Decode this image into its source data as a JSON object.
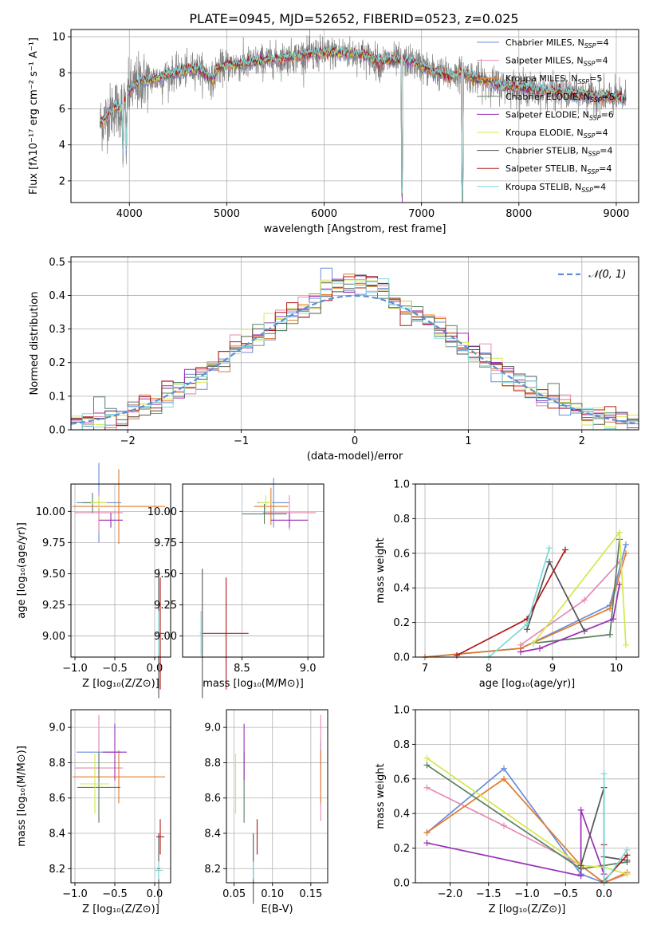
{
  "figure": {
    "title": "PLATE=0945, MJD=52652, FIBERID=0523, z=0.025"
  },
  "colors": {
    "Chabrier MILES": "#6a8cd8",
    "Salpeter MILES": "#e58ab6",
    "Kroupa MILES": "#e07b2a",
    "Chabrier ELODIE": "#5a8060",
    "Salpeter ELODIE": "#9a2fb5",
    "Kroupa ELODIE": "#d4e84a",
    "Chabrier STELIB": "#555555",
    "Salpeter STELIB": "#b01818",
    "Kroupa STELIB": "#7dd9d9",
    "data": "#808080",
    "gaussian": "#5b8fd6"
  },
  "chart_data": [
    {
      "id": "spectrum",
      "type": "line",
      "title": "PLATE=0945, MJD=52652, FIBERID=0523, z=0.025",
      "xlabel": "wavelength [Angstrom, rest frame]",
      "ylabel": "Flux [fλ10⁻¹⁷ erg cm⁻² s⁻¹ A⁻¹]",
      "xlim": [
        3400,
        9230
      ],
      "ylim": [
        0.8,
        10.4
      ],
      "xticks": [
        4000,
        5000,
        6000,
        7000,
        8000,
        9000
      ],
      "yticks": [
        2,
        4,
        6,
        8,
        10
      ],
      "legend_position": "top-right",
      "continuum_anchors": {
        "x": [
          3700,
          3760,
          3800,
          3850,
          3900,
          3950,
          4000,
          4050,
          4100,
          4200,
          4300,
          4400,
          4500,
          4700,
          4860,
          4900,
          5000,
          5200,
          5400,
          5600,
          5800,
          6000,
          6200,
          6400,
          6563,
          6700,
          6900,
          7000,
          7100,
          7300,
          7400,
          7500,
          7600,
          7700,
          7800,
          8000,
          8200,
          8400,
          8600,
          8800,
          9000,
          9100
        ],
        "y": [
          5.2,
          5.5,
          5.8,
          6.1,
          6.0,
          6.3,
          7.0,
          7.2,
          7.5,
          7.6,
          7.7,
          7.9,
          8.0,
          8.3,
          7.6,
          8.2,
          8.4,
          8.5,
          8.7,
          8.8,
          9.0,
          9.1,
          9.1,
          9.0,
          8.6,
          8.7,
          8.6,
          8.4,
          8.1,
          7.8,
          8.0,
          7.8,
          7.6,
          7.5,
          7.3,
          7.2,
          7.0,
          6.9,
          6.8,
          6.7,
          6.6,
          6.6
        ]
      },
      "series": [
        {
          "name": "Chabrier MILES, N_SSP=4",
          "label": "Chabrier MILES, N",
          "nssp": "=4"
        },
        {
          "name": "Salpeter MILES, N_SSP=4",
          "label": "Salpeter MILES, N",
          "nssp": "=4"
        },
        {
          "name": "Kroupa MILES, N_SSP=5",
          "label": "Kroupa MILES, N",
          "nssp": "=5"
        },
        {
          "name": "Chabrier ELODIE, N_SSP=5",
          "label": "Chabrier ELODIE, N",
          "nssp": "=5"
        },
        {
          "name": "Salpeter ELODIE, N_SSP=6",
          "label": "Salpeter ELODIE, N",
          "nssp": "=6"
        },
        {
          "name": "Kroupa ELODIE, N_SSP=4",
          "label": "Kroupa ELODIE, N",
          "nssp": "=4"
        },
        {
          "name": "Chabrier STELIB, N_SSP=4",
          "label": "Chabrier STELIB, N",
          "nssp": "=4"
        },
        {
          "name": "Salpeter STELIB, N_SSP=4",
          "label": "Salpeter STELIB, N",
          "nssp": "=4"
        },
        {
          "name": "Kroupa STELIB, N_SSP=4",
          "label": "Kroupa STELIB, N",
          "nssp": "=4"
        }
      ],
      "legend_sub": "SSP"
    },
    {
      "id": "residuals",
      "type": "histogram",
      "xlabel": "(data-model)/error",
      "ylabel": "Normed distribution",
      "xlim": [
        -2.5,
        2.5
      ],
      "ylim": [
        0,
        0.515
      ],
      "xticks": [
        -2,
        -1,
        0,
        1,
        2
      ],
      "yticks": [
        0.0,
        0.1,
        0.2,
        0.3,
        0.4,
        0.5
      ],
      "bin_width": 0.1,
      "grid": true,
      "legend": "𝒩(0, 1)",
      "legend_position": "top-right",
      "gaussian": {
        "mean": 0,
        "sigma": 1
      }
    },
    {
      "id": "z-age",
      "type": "scatter",
      "xlabel": "Z [log₁₀(Z/Z⊙)]",
      "ylabel": "age  [log₁₀(age/yr)]",
      "xlim": [
        -1.05,
        0.2
      ],
      "ylim": [
        8.83,
        10.22
      ],
      "xticks": [
        -1.0,
        -0.5,
        0.0
      ],
      "yticks": [
        9.0,
        9.25,
        9.5,
        9.75,
        10.0
      ],
      "points": [
        {
          "series": "Chabrier MILES",
          "x": -0.7,
          "y": 10.07,
          "xerr": 0.28,
          "yerr": 0.32
        },
        {
          "series": "Salpeter MILES",
          "x": -0.7,
          "y": 9.99,
          "xerr": 0.3,
          "yerr": 0.16
        },
        {
          "series": "Kroupa MILES",
          "x": -0.45,
          "y": 10.04,
          "xerr": 0.58,
          "yerr": 0.3
        },
        {
          "series": "Chabrier ELODIE",
          "x": -0.78,
          "y": 10.07,
          "xerr": 0.13,
          "yerr": 0.08
        },
        {
          "series": "Salpeter ELODIE",
          "x": -0.55,
          "y": 9.93,
          "xerr": 0.15,
          "yerr": 0.06
        },
        {
          "series": "Kroupa ELODIE",
          "x": -0.7,
          "y": 10.07,
          "xerr": 0.1,
          "yerr": 0.05
        },
        {
          "series": "Chabrier STELIB",
          "x": 0.05,
          "y": 9.02,
          "xerr": 0.02,
          "yerr": 0.52
        },
        {
          "series": "Salpeter STELIB",
          "x": 0.07,
          "y": 9.02,
          "xerr": 0.05,
          "yerr": 0.45
        },
        {
          "series": "Kroupa STELIB",
          "x": 0.05,
          "y": 9.02,
          "xerr": 0.02,
          "yerr": 0.18
        }
      ]
    },
    {
      "id": "mass-age",
      "type": "scatter",
      "xlabel": "mass [log₁₀(M/M⊙)]",
      "ylabel": "",
      "xlim": [
        8.05,
        9.12
      ],
      "ylim": [
        8.83,
        10.22
      ],
      "xticks": [
        8.5,
        9.0
      ],
      "yticks": [
        9.0,
        9.25,
        9.5,
        9.75,
        10.0
      ],
      "points": [
        {
          "series": "Chabrier MILES",
          "x": 8.74,
          "y": 10.07,
          "xerr": 0.12,
          "yerr": 0.2
        },
        {
          "series": "Salpeter MILES",
          "x": 8.86,
          "y": 9.99,
          "xerr": 0.2,
          "yerr": 0.14
        },
        {
          "series": "Kroupa MILES",
          "x": 8.72,
          "y": 10.04,
          "xerr": 0.13,
          "yerr": 0.15
        },
        {
          "series": "Chabrier ELODIE",
          "x": 8.67,
          "y": 9.98,
          "xerr": 0.17,
          "yerr": 0.08
        },
        {
          "series": "Salpeter ELODIE",
          "x": 8.86,
          "y": 9.93,
          "xerr": 0.14,
          "yerr": 0.06
        },
        {
          "series": "Kroupa ELODIE",
          "x": 8.68,
          "y": 10.07,
          "xerr": 0.05,
          "yerr": 0.06
        },
        {
          "series": "Chabrier STELIB",
          "x": 8.2,
          "y": 9.02,
          "xerr": 0.01,
          "yerr": 0.52
        },
        {
          "series": "Salpeter STELIB",
          "x": 8.38,
          "y": 9.02,
          "xerr": 0.17,
          "yerr": 0.45
        },
        {
          "series": "Kroupa STELIB",
          "x": 8.19,
          "y": 9.02,
          "xerr": 0.01,
          "yerr": 0.18
        }
      ]
    },
    {
      "id": "age-weight",
      "type": "line",
      "xlabel": "age  [log₁₀(age/yr)]",
      "ylabel": "mass weight",
      "xlim": [
        6.85,
        10.35
      ],
      "ylim": [
        0,
        1.0
      ],
      "xticks": [
        7,
        8,
        9,
        10
      ],
      "yticks": [
        0.0,
        0.2,
        0.4,
        0.6,
        0.8,
        1.0
      ],
      "grid": true,
      "series": [
        {
          "name": "Chabrier MILES",
          "x": [
            7.0,
            8.5,
            9.9,
            10.15
          ],
          "y": [
            0.0,
            0.05,
            0.3,
            0.65
          ]
        },
        {
          "name": "Salpeter MILES",
          "x": [
            8.5,
            9.5,
            10.05
          ],
          "y": [
            0.07,
            0.33,
            0.55
          ]
        },
        {
          "name": "Kroupa MILES",
          "x": [
            7.0,
            8.5,
            9.9,
            10.15
          ],
          "y": [
            0.0,
            0.05,
            0.28,
            0.6
          ]
        },
        {
          "name": "Chabrier ELODIE",
          "x": [
            8.7,
            9.9,
            10.05
          ],
          "y": [
            0.08,
            0.13,
            0.68
          ]
        },
        {
          "name": "Salpeter ELODIE",
          "x": [
            8.5,
            8.8,
            9.95,
            10.05
          ],
          "y": [
            0.03,
            0.05,
            0.22,
            0.42
          ]
        },
        {
          "name": "Kroupa ELODIE",
          "x": [
            8.7,
            10.05,
            10.15
          ],
          "y": [
            0.08,
            0.72,
            0.07
          ]
        },
        {
          "name": "Chabrier STELIB",
          "x": [
            8.6,
            8.95,
            9.5
          ],
          "y": [
            0.16,
            0.55,
            0.15
          ]
        },
        {
          "name": "Salpeter STELIB",
          "x": [
            7.5,
            8.6,
            9.2
          ],
          "y": [
            0.01,
            0.22,
            0.62
          ]
        },
        {
          "name": "Kroupa STELIB",
          "x": [
            8.0,
            8.6,
            8.95
          ],
          "y": [
            0.0,
            0.19,
            0.63
          ]
        }
      ]
    },
    {
      "id": "z-mass",
      "type": "scatter",
      "xlabel": "Z [log₁₀(Z/Z⊙)]",
      "ylabel": "mass [log₁₀(M/M⊙)]",
      "xlim": [
        -1.05,
        0.2
      ],
      "ylim": [
        8.12,
        9.1
      ],
      "xticks": [
        -1.0,
        -0.5,
        0.0
      ],
      "yticks": [
        8.2,
        8.4,
        8.6,
        8.8,
        9.0
      ],
      "points": [
        {
          "series": "Chabrier MILES",
          "x": -0.7,
          "y": 8.86,
          "xerr": 0.28,
          "yerr": 0.12
        },
        {
          "series": "Salpeter MILES",
          "x": -0.7,
          "y": 8.77,
          "xerr": 0.3,
          "yerr": 0.3
        },
        {
          "series": "Kroupa MILES",
          "x": -0.45,
          "y": 8.72,
          "xerr": 0.58,
          "yerr": 0.15
        },
        {
          "series": "Chabrier ELODIE",
          "x": -0.7,
          "y": 8.66,
          "xerr": 0.27,
          "yerr": 0.2
        },
        {
          "series": "Salpeter ELODIE",
          "x": -0.5,
          "y": 8.86,
          "xerr": 0.15,
          "yerr": 0.16
        },
        {
          "series": "Kroupa ELODIE",
          "x": -0.75,
          "y": 8.68,
          "xerr": 0.18,
          "yerr": 0.17
        },
        {
          "series": "Chabrier STELIB",
          "x": 0.05,
          "y": 8.2,
          "xerr": 0.02,
          "yerr": 0.2
        },
        {
          "series": "Salpeter STELIB",
          "x": 0.07,
          "y": 8.38,
          "xerr": 0.05,
          "yerr": 0.1
        },
        {
          "series": "Kroupa STELIB",
          "x": 0.05,
          "y": 8.19,
          "xerr": 0.05,
          "yerr": 0.05
        }
      ]
    },
    {
      "id": "ebv-mass",
      "type": "scatter",
      "xlabel": "E(B-V)",
      "ylabel": "",
      "xlim": [
        0.04,
        0.172
      ],
      "ylim": [
        8.12,
        9.1
      ],
      "xticks": [
        0.05,
        0.1,
        0.15
      ],
      "yticks": [
        8.2,
        8.4,
        8.6,
        8.8,
        9.0
      ],
      "points": [
        {
          "series": "Chabrier MILES",
          "x": 0.163,
          "y": 8.86,
          "xerr": 0,
          "yerr": 0.07
        },
        {
          "series": "Salpeter MILES",
          "x": 0.163,
          "y": 8.77,
          "xerr": 0,
          "yerr": 0.3
        },
        {
          "series": "Kroupa MILES",
          "x": 0.163,
          "y": 8.72,
          "xerr": 0,
          "yerr": 0.15
        },
        {
          "series": "Chabrier ELODIE",
          "x": 0.063,
          "y": 8.66,
          "xerr": 0,
          "yerr": 0.2
        },
        {
          "series": "Salpeter ELODIE",
          "x": 0.063,
          "y": 8.86,
          "xerr": 0,
          "yerr": 0.16
        },
        {
          "series": "Kroupa ELODIE",
          "x": 0.052,
          "y": 8.68,
          "xerr": 0,
          "yerr": 0.17
        },
        {
          "series": "Chabrier STELIB",
          "x": 0.075,
          "y": 8.2,
          "xerr": 0,
          "yerr": 0.2
        },
        {
          "series": "Salpeter STELIB",
          "x": 0.08,
          "y": 8.38,
          "xerr": 0,
          "yerr": 0.1
        },
        {
          "series": "Kroupa STELIB",
          "x": 0.075,
          "y": 8.19,
          "xerr": 0,
          "yerr": 0.05
        }
      ]
    },
    {
      "id": "z-weight",
      "type": "line",
      "xlabel": "Z [log₁₀(Z/Z⊙)]",
      "ylabel": "mass weight",
      "xlim": [
        -2.45,
        0.45
      ],
      "ylim": [
        0,
        1.0
      ],
      "xticks": [
        -2.0,
        -1.5,
        -1.0,
        -0.5,
        0.0
      ],
      "yticks": [
        0.0,
        0.2,
        0.4,
        0.6,
        0.8,
        1.0
      ],
      "grid": true,
      "series": [
        {
          "name": "Chabrier MILES",
          "x": [
            -2.3,
            -1.3,
            -0.3,
            0.0
          ],
          "y": [
            0.29,
            0.66,
            0.05,
            0.0
          ]
        },
        {
          "name": "Salpeter MILES",
          "x": [
            -2.3,
            -1.3,
            -0.3,
            0.0,
            0.3
          ],
          "y": [
            0.55,
            0.33,
            0.1,
            0.0,
            0.05
          ]
        },
        {
          "name": "Kroupa MILES",
          "x": [
            -2.3,
            -1.3,
            -0.3,
            0.0,
            0.3
          ],
          "y": [
            0.29,
            0.6,
            0.1,
            0.0,
            0.06
          ]
        },
        {
          "name": "Chabrier ELODIE",
          "x": [
            -2.3,
            -0.3,
            0.0,
            0.3
          ],
          "y": [
            0.68,
            0.08,
            0.1,
            0.12
          ]
        },
        {
          "name": "Salpeter ELODIE",
          "x": [
            -2.3,
            -0.3,
            -0.3,
            0.0
          ],
          "y": [
            0.23,
            0.04,
            0.42,
            0.05
          ]
        },
        {
          "name": "Kroupa ELODIE",
          "x": [
            -2.3,
            -0.3,
            0.0,
            0.3
          ],
          "y": [
            0.72,
            0.1,
            0.09,
            0.05
          ]
        },
        {
          "name": "Chabrier STELIB",
          "x": [
            -0.3,
            0.0,
            0.0,
            0.3
          ],
          "y": [
            0.1,
            0.55,
            0.15,
            0.13
          ]
        },
        {
          "name": "Salpeter STELIB",
          "x": [
            0.0,
            0.0,
            0.3
          ],
          "y": [
            0.22,
            0.01,
            0.16
          ]
        },
        {
          "name": "Kroupa STELIB",
          "x": [
            0.0,
            0.0,
            0.3
          ],
          "y": [
            0.63,
            0.0,
            0.19
          ]
        }
      ]
    }
  ]
}
